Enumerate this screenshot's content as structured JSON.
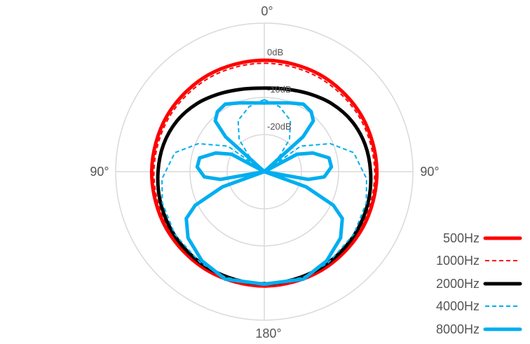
{
  "chart_data": {
    "type": "polar",
    "title": "",
    "symmetric": true,
    "angle_labels": {
      "top": "0°",
      "left": "90°",
      "right": "90°",
      "bottom": "180°"
    },
    "r_range_db": [
      -30,
      10
    ],
    "r_ticks": [
      {
        "value": 0,
        "label": "0dB"
      },
      {
        "value": -10,
        "label": "-10dB"
      },
      {
        "value": -20,
        "label": "-20dB"
      },
      {
        "value": 10,
        "label": ""
      }
    ],
    "grid": true,
    "legend_position": "bottom-right",
    "series": [
      {
        "name": "500Hz",
        "color": "#ff0000",
        "dash": false,
        "width": "thick",
        "angles": [
          0,
          30,
          60,
          90,
          120,
          150,
          180
        ],
        "values": [
          0,
          0.1,
          0.2,
          0.3,
          0.5,
          0.7,
          0.8
        ]
      },
      {
        "name": "1000Hz",
        "color": "#ff0000",
        "dash": true,
        "width": "thin",
        "angles": [
          0,
          30,
          60,
          90,
          120,
          150,
          180
        ],
        "values": [
          -0.8,
          -0.7,
          -0.5,
          -0.3,
          0,
          0.3,
          0.5
        ]
      },
      {
        "name": "2000Hz",
        "color": "#000000",
        "dash": false,
        "width": "thick",
        "angles": [
          0,
          15,
          30,
          45,
          60,
          75,
          90,
          105,
          120,
          135,
          150,
          165,
          180
        ],
        "values": [
          -7.5,
          -7,
          -5.8,
          -4.2,
          -2.8,
          -1.9,
          -1.4,
          -0.9,
          -0.5,
          -0.2,
          0,
          0.1,
          0.2
        ]
      },
      {
        "name": "4000Hz",
        "color": "#00aeef",
        "dash": true,
        "width": "thin",
        "angles": [
          0,
          13,
          27,
          38,
          44,
          47,
          55,
          67,
          78,
          94,
          107,
          125,
          145,
          160,
          180
        ],
        "values": [
          -10.6,
          -12,
          -14.5,
          -19,
          -24,
          -30,
          -18,
          -10.7,
          -5.4,
          -2.4,
          -1.3,
          -0.6,
          0,
          0.3,
          0.4
        ]
      },
      {
        "name": "8000Hz",
        "color": "#00aeef",
        "dash": false,
        "width": "thick",
        "angles": [
          0,
          10,
          20,
          30,
          38,
          44,
          48,
          52,
          56,
          62,
          69,
          78,
          86,
          95,
          100,
          104,
          110,
          116,
          121,
          131,
          145,
          160,
          180
        ],
        "values": [
          -11.5,
          -11.2,
          -10.3,
          -9,
          -9.5,
          -11,
          -16,
          -30,
          -30,
          -20,
          -16,
          -12.2,
          -11.9,
          -13.8,
          -18,
          -30,
          -18,
          -9.3,
          -5.5,
          -2.8,
          -0.7,
          0.8,
          0.3
        ]
      }
    ]
  }
}
